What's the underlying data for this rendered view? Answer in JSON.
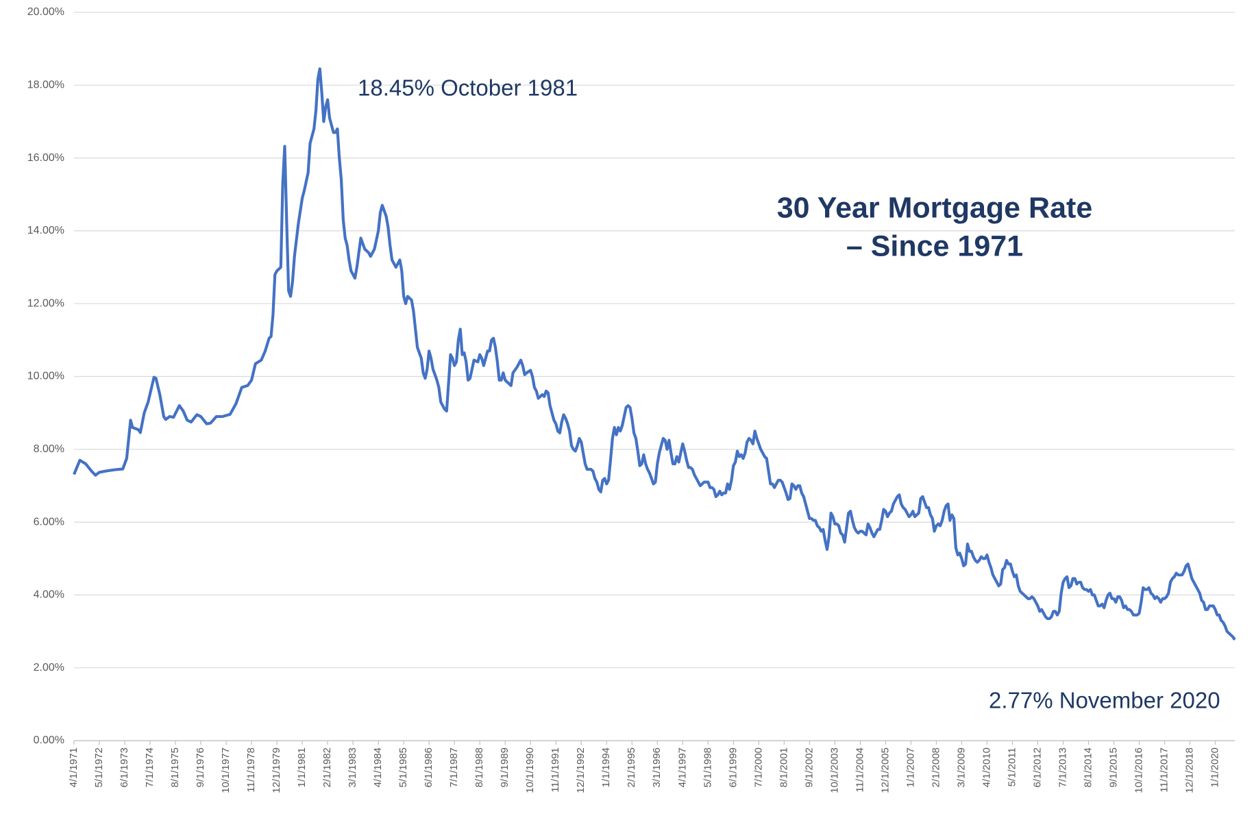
{
  "chart_data": {
    "type": "line",
    "title": [
      "30 Year Mortgage Rate",
      "– Since 1971"
    ],
    "annotations": [
      {
        "text": "18.45% October 1981"
      },
      {
        "text": "2.77% November 2020"
      }
    ],
    "color": "#4472c4",
    "xlim": [
      "4/1/1971",
      "11/1/2020"
    ],
    "xticks": [
      "4/1/1971",
      "5/1/1972",
      "6/1/1973",
      "7/1/1974",
      "8/1/1975",
      "9/1/1976",
      "10/1/1977",
      "11/1/1978",
      "12/1/1979",
      "1/1/1981",
      "2/1/1982",
      "3/1/1983",
      "4/1/1984",
      "5/1/1985",
      "6/1/1986",
      "7/1/1987",
      "8/1/1988",
      "9/1/1989",
      "10/1/1990",
      "11/1/1991",
      "12/1/1992",
      "1/1/1994",
      "2/1/1995",
      "3/1/1996",
      "4/1/1997",
      "5/1/1998",
      "6/1/1999",
      "7/1/2000",
      "8/1/2001",
      "9/1/2002",
      "10/1/2003",
      "11/1/2004",
      "12/1/2005",
      "1/1/2007",
      "2/1/2008",
      "3/1/2009",
      "4/1/2010",
      "5/1/2011",
      "6/1/2012",
      "7/1/2013",
      "8/1/2014",
      "9/1/2015",
      "10/1/2016",
      "11/1/2017",
      "12/1/2018",
      "1/1/2020"
    ],
    "ylim": [
      0,
      20
    ],
    "yticks": [
      {
        "value": 0,
        "label": "0.00%"
      },
      {
        "value": 2,
        "label": "2.00%"
      },
      {
        "value": 4,
        "label": "4.00%"
      },
      {
        "value": 6,
        "label": "6.00%"
      },
      {
        "value": 8,
        "label": "8.00%"
      },
      {
        "value": 10,
        "label": "10.00%"
      },
      {
        "value": 12,
        "label": "12.00%"
      },
      {
        "value": 14,
        "label": "14.00%"
      },
      {
        "value": 16,
        "label": "16.00%"
      },
      {
        "value": 18,
        "label": "18.00%"
      },
      {
        "value": 20,
        "label": "20.00%"
      }
    ],
    "grid": true,
    "x": [
      "4/1/1971",
      "7/1/1971",
      "10/1/1971",
      "1/1/1972",
      "3/1/1972",
      "5/1/1972",
      "9/1/1972",
      "1/1/1973",
      "5/1/1973",
      "7/1/1973",
      "9/1/1973",
      "10/1/1973",
      "1/1/1974",
      "2/1/1974",
      "4/1/1974",
      "6/1/1974",
      "9/1/1974",
      "10/1/1974",
      "12/1/1974",
      "2/1/1975",
      "3/1/1975",
      "5/1/1975",
      "7/1/1975",
      "10/1/1975",
      "12/1/1975",
      "2/1/1976",
      "4/1/1976",
      "7/1/1976",
      "9/1/1976",
      "12/1/1976",
      "2/1/1977",
      "5/1/1977",
      "8/1/1977",
      "12/1/1977",
      "3/1/1978",
      "6/1/1978",
      "9/1/1978",
      "11/1/1978",
      "1/1/1979",
      "4/1/1979",
      "6/1/1979",
      "8/1/1979",
      "9/1/1979",
      "10/1/1979",
      "11/1/1979",
      "12/1/1979",
      "2/1/1980",
      "3/1/1980",
      "4/1/1980",
      "5/1/1980",
      "6/1/1980",
      "7/1/1980",
      "8/1/1980",
      "9/1/1980",
      "11/1/1980",
      "1/1/1981",
      "2/1/1981",
      "4/1/1981",
      "5/1/1981",
      "7/1/1981",
      "8/1/1981",
      "9/1/1981",
      "10/1/1981",
      "11/1/1981",
      "12/1/1981",
      "1/1/1982",
      "2/1/1982",
      "3/1/1982",
      "4/1/1982",
      "5/1/1982",
      "6/1/1982",
      "7/1/1982",
      "8/1/1982",
      "9/1/1982",
      "10/1/1982",
      "11/1/1982",
      "12/1/1982",
      "1/1/1983",
      "2/1/1983",
      "3/1/1983",
      "4/1/1983",
      "5/1/1983",
      "6/1/1983",
      "7/1/1983",
      "9/1/1983",
      "11/1/1983",
      "12/1/1983",
      "2/1/1984",
      "4/1/1984",
      "5/1/1984",
      "6/1/1984",
      "8/1/1984",
      "9/1/1984",
      "10/1/1984",
      "11/1/1984",
      "1/1/1985",
      "3/1/1985",
      "4/1/1985",
      "5/1/1985",
      "6/1/1985",
      "7/1/1985",
      "9/1/1985",
      "10/1/1985",
      "11/1/1985",
      "12/1/1985",
      "2/1/1986",
      "3/1/1986",
      "4/1/1986",
      "5/1/1986",
      "6/1/1986",
      "7/1/1986",
      "8/1/1986",
      "10/1/1986",
      "11/1/1986",
      "12/1/1986",
      "2/1/1987",
      "3/1/1987",
      "5/1/1987",
      "6/1/1987",
      "7/1/1987",
      "8/1/1987",
      "9/1/1987",
      "10/1/1987",
      "11/1/1987",
      "12/1/1987",
      "1/1/1988",
      "2/1/1988",
      "3/1/1988",
      "5/1/1988",
      "7/1/1988",
      "8/1/1988",
      "9/1/1988",
      "10/1/1988",
      "12/1/1988",
      "1/1/1989",
      "2/1/1989",
      "3/1/1989",
      "4/1/1989",
      "5/1/1989",
      "6/1/1989",
      "7/1/1989",
      "8/1/1989",
      "9/1/1989",
      "11/1/1989",
      "12/1/1989",
      "1/1/1990",
      "3/1/1990",
      "5/1/1990",
      "6/1/1990",
      "7/1/1990",
      "8/1/1990",
      "10/1/1990",
      "11/1/1990",
      "12/1/1990",
      "1/1/1991",
      "2/1/1991",
      "4/1/1991",
      "5/1/1991",
      "6/1/1991",
      "7/1/1991",
      "8/1/1991",
      "9/1/1991",
      "10/1/1991",
      "11/1/1991",
      "12/1/1991",
      "1/1/1992",
      "2/1/1992",
      "3/1/1992",
      "4/1/1992",
      "5/1/1992",
      "6/1/1992",
      "7/1/1992",
      "8/1/1992",
      "9/1/1992",
      "10/1/1992",
      "11/1/1992",
      "12/1/1992",
      "1/1/1993",
      "2/1/1993",
      "3/1/1993",
      "5/1/1993",
      "6/1/1993",
      "7/1/1993",
      "8/1/1993",
      "9/1/1993",
      "10/1/1993",
      "11/1/1993",
      "12/1/1993",
      "1/1/1994",
      "2/1/1994",
      "3/1/1994",
      "4/1/1994",
      "5/1/1994",
      "6/1/1994",
      "7/1/1994",
      "8/1/1994",
      "9/1/1994",
      "10/1/1994",
      "11/1/1994",
      "12/1/1994",
      "1/1/1995",
      "2/1/1995",
      "3/1/1995",
      "4/1/1995",
      "5/1/1995",
      "6/1/1995",
      "7/1/1995",
      "8/1/1995",
      "9/1/1995",
      "10/1/1995",
      "11/1/1995",
      "12/1/1995",
      "1/1/1996",
      "2/1/1996",
      "3/1/1996",
      "4/1/1996",
      "5/1/1996",
      "6/1/1996",
      "7/1/1996",
      "8/1/1996",
      "9/1/1996",
      "10/1/1996",
      "11/1/1996",
      "12/1/1996",
      "1/1/1997",
      "2/1/1997",
      "3/1/1997",
      "4/1/1997",
      "5/1/1997",
      "6/1/1997",
      "7/1/1997",
      "8/1/1997",
      "9/1/1997",
      "10/1/1997",
      "11/1/1997",
      "12/1/1997",
      "1/1/1998",
      "2/1/1998",
      "3/1/1998",
      "4/1/1998",
      "5/1/1998",
      "6/1/1998",
      "7/1/1998",
      "8/1/1998",
      "9/1/1998",
      "10/1/1998",
      "11/1/1998",
      "12/1/1998",
      "1/1/1999",
      "2/1/1999",
      "3/1/1999",
      "4/1/1999",
      "5/1/1999",
      "6/1/1999",
      "7/1/1999",
      "8/1/1999",
      "9/1/1999",
      "10/1/1999",
      "11/1/1999",
      "12/1/1999",
      "1/1/2000",
      "2/1/2000",
      "3/1/2000",
      "4/1/2000",
      "5/1/2000",
      "6/1/2000",
      "7/1/2000",
      "8/1/2000",
      "9/1/2000",
      "10/1/2000",
      "11/1/2000",
      "12/1/2000",
      "1/1/2001",
      "2/1/2001",
      "3/1/2001",
      "4/1/2001",
      "5/1/2001",
      "6/1/2001",
      "7/1/2001",
      "8/1/2001",
      "9/1/2001",
      "10/1/2001",
      "11/1/2001",
      "12/1/2001",
      "1/1/2002",
      "2/1/2002",
      "3/1/2002",
      "4/1/2002",
      "5/1/2002",
      "6/1/2002",
      "7/1/2002",
      "8/1/2002",
      "9/1/2002",
      "10/1/2002",
      "11/1/2002",
      "12/1/2002",
      "1/1/2003",
      "2/1/2003",
      "3/1/2003",
      "4/1/2003",
      "5/1/2003",
      "6/1/2003",
      "7/1/2003",
      "8/1/2003",
      "9/1/2003",
      "10/1/2003",
      "11/1/2003",
      "12/1/2003",
      "1/1/2004",
      "2/1/2004",
      "3/1/2004",
      "4/1/2004",
      "5/1/2004",
      "6/1/2004",
      "7/1/2004",
      "8/1/2004",
      "9/1/2004",
      "10/1/2004",
      "11/1/2004",
      "12/1/2004",
      "1/1/2005",
      "2/1/2005",
      "3/1/2005",
      "4/1/2005",
      "5/1/2005",
      "6/1/2005",
      "7/1/2005",
      "8/1/2005",
      "9/1/2005",
      "10/1/2005",
      "11/1/2005",
      "12/1/2005",
      "1/1/2006",
      "2/1/2006",
      "3/1/2006",
      "4/1/2006",
      "5/1/2006",
      "6/1/2006",
      "7/1/2006",
      "8/1/2006",
      "9/1/2006",
      "10/1/2006",
      "11/1/2006",
      "12/1/2006",
      "1/1/2007",
      "2/1/2007",
      "3/1/2007",
      "4/1/2007",
      "5/1/2007",
      "6/1/2007",
      "7/1/2007",
      "8/1/2007",
      "9/1/2007",
      "10/1/2007",
      "11/1/2007",
      "12/1/2007",
      "1/1/2008",
      "2/1/2008",
      "3/1/2008",
      "4/1/2008",
      "5/1/2008",
      "6/1/2008",
      "7/1/2008",
      "8/1/2008",
      "9/1/2008",
      "10/1/2008",
      "11/1/2008",
      "12/1/2008",
      "1/1/2009",
      "2/1/2009",
      "3/1/2009",
      "4/1/2009",
      "5/1/2009",
      "6/1/2009",
      "7/1/2009",
      "8/1/2009",
      "9/1/2009",
      "10/1/2009",
      "11/1/2009",
      "12/1/2009",
      "1/1/2010",
      "2/1/2010",
      "3/1/2010",
      "4/1/2010",
      "5/1/2010",
      "6/1/2010",
      "7/1/2010",
      "8/1/2010",
      "9/1/2010",
      "10/1/2010",
      "11/1/2010",
      "12/1/2010",
      "1/1/2011",
      "2/1/2011",
      "3/1/2011",
      "4/1/2011",
      "5/1/2011",
      "6/1/2011",
      "7/1/2011",
      "8/1/2011",
      "9/1/2011",
      "10/1/2011",
      "11/1/2011",
      "12/1/2011",
      "1/1/2012",
      "2/1/2012",
      "3/1/2012",
      "4/1/2012",
      "5/1/2012",
      "6/1/2012",
      "7/1/2012",
      "8/1/2012",
      "9/1/2012",
      "10/1/2012",
      "11/1/2012",
      "12/1/2012",
      "1/1/2013",
      "2/1/2013",
      "3/1/2013",
      "4/1/2013",
      "5/1/2013",
      "6/1/2013",
      "7/1/2013",
      "8/1/2013",
      "9/1/2013",
      "10/1/2013",
      "11/1/2013",
      "12/1/2013",
      "1/1/2014",
      "2/1/2014",
      "3/1/2014",
      "4/1/2014",
      "5/1/2014",
      "6/1/2014",
      "7/1/2014",
      "8/1/2014",
      "9/1/2014",
      "10/1/2014",
      "11/1/2014",
      "12/1/2014",
      "1/1/2015",
      "2/1/2015",
      "3/1/2015",
      "4/1/2015",
      "5/1/2015",
      "6/1/2015",
      "7/1/2015",
      "8/1/2015",
      "9/1/2015",
      "10/1/2015",
      "11/1/2015",
      "12/1/2015",
      "1/1/2016",
      "2/1/2016",
      "3/1/2016",
      "4/1/2016",
      "5/1/2016",
      "6/1/2016",
      "7/1/2016",
      "8/1/2016",
      "9/1/2016",
      "10/1/2016",
      "11/1/2016",
      "12/1/2016",
      "1/1/2017",
      "2/1/2017",
      "3/1/2017",
      "4/1/2017",
      "5/1/2017",
      "6/1/2017",
      "7/1/2017",
      "8/1/2017",
      "9/1/2017",
      "10/1/2017",
      "11/1/2017",
      "12/1/2017",
      "1/1/2018",
      "2/1/2018",
      "3/1/2018",
      "4/1/2018",
      "5/1/2018",
      "6/1/2018",
      "7/1/2018",
      "8/1/2018",
      "9/1/2018",
      "10/1/2018",
      "11/1/2018",
      "12/1/2018",
      "1/1/2019",
      "2/1/2019",
      "3/1/2019",
      "4/1/2019",
      "5/1/2019",
      "6/1/2019",
      "7/1/2019",
      "8/1/2019",
      "9/1/2019",
      "10/1/2019",
      "11/1/2019",
      "12/1/2019",
      "1/1/2020",
      "2/1/2020",
      "3/1/2020",
      "4/1/2020",
      "5/1/2020",
      "6/1/2020",
      "7/1/2020",
      "8/1/2020",
      "9/1/2020",
      "10/1/2020",
      "11/1/2020"
    ],
    "values": [
      7.31,
      7.7,
      7.6,
      7.4,
      7.29,
      7.37,
      7.41,
      7.44,
      7.46,
      7.75,
      8.8,
      8.6,
      8.54,
      8.46,
      9.0,
      9.3,
      9.98,
      9.95,
      9.5,
      8.9,
      8.82,
      8.9,
      8.88,
      9.2,
      9.05,
      8.8,
      8.75,
      8.95,
      8.9,
      8.7,
      8.72,
      8.9,
      8.9,
      8.96,
      9.25,
      9.7,
      9.75,
      9.9,
      10.35,
      10.45,
      10.7,
      11.05,
      11.1,
      11.7,
      12.8,
      12.9,
      13.0,
      15.3,
      16.32,
      14.26,
      12.35,
      12.2,
      12.6,
      13.3,
      14.2,
      14.9,
      15.1,
      15.6,
      16.4,
      16.8,
      17.3,
      18.16,
      18.45,
      17.8,
      17.0,
      17.4,
      17.6,
      17.1,
      16.9,
      16.7,
      16.7,
      16.8,
      16.0,
      15.4,
      14.3,
      13.8,
      13.6,
      13.2,
      12.9,
      12.8,
      12.7,
      13.0,
      13.4,
      13.8,
      13.5,
      13.4,
      13.3,
      13.5,
      14.0,
      14.5,
      14.7,
      14.4,
      14.1,
      13.6,
      13.2,
      13.0,
      13.2,
      12.9,
      12.2,
      12.0,
      12.2,
      12.1,
      11.8,
      11.3,
      10.8,
      10.5,
      10.1,
      9.95,
      10.2,
      10.7,
      10.5,
      10.2,
      9.9,
      9.7,
      9.3,
      9.1,
      9.05,
      10.6,
      10.5,
      10.3,
      10.4,
      11.0,
      11.3,
      10.6,
      10.65,
      10.4,
      9.9,
      9.95,
      10.45,
      10.4,
      10.6,
      10.5,
      10.3,
      10.7,
      10.7,
      11.0,
      11.05,
      10.8,
      10.4,
      9.9,
      9.9,
      10.1,
      9.9,
      9.8,
      9.75,
      10.1,
      10.25,
      10.45,
      10.3,
      10.05,
      10.1,
      10.17,
      10.0,
      9.7,
      9.6,
      9.4,
      9.5,
      9.45,
      9.6,
      9.55,
      9.2,
      9.0,
      8.8,
      8.7,
      8.5,
      8.45,
      8.75,
      8.95,
      8.85,
      8.7,
      8.5,
      8.1,
      8.0,
      7.95,
      8.1,
      8.3,
      8.2,
      7.9,
      7.6,
      7.45,
      7.45,
      7.4,
      7.2,
      7.1,
      6.9,
      6.83,
      7.15,
      7.2,
      7.05,
      7.15,
      7.7,
      8.3,
      8.6,
      8.4,
      8.6,
      8.5,
      8.65,
      8.9,
      9.15,
      9.2,
      9.15,
      8.85,
      8.45,
      8.3,
      7.95,
      7.55,
      7.6,
      7.85,
      7.6,
      7.45,
      7.35,
      7.2,
      7.05,
      7.1,
      7.6,
      7.9,
      8.1,
      8.3,
      8.25,
      8.0,
      8.25,
      7.9,
      7.6,
      7.6,
      7.8,
      7.65,
      7.9,
      8.15,
      7.95,
      7.7,
      7.5,
      7.5,
      7.45,
      7.3,
      7.2,
      7.1,
      7.0,
      7.05,
      7.1,
      7.1,
      7.1,
      6.95,
      6.95,
      6.9,
      6.7,
      6.75,
      6.85,
      6.75,
      6.8,
      6.8,
      7.05,
      6.9,
      7.15,
      7.55,
      7.65,
      7.95,
      7.8,
      7.85,
      7.75,
      7.9,
      8.2,
      8.3,
      8.25,
      8.15,
      8.5,
      8.3,
      8.15,
      8.0,
      7.9,
      7.8,
      7.75,
      7.4,
      7.05,
      7.05,
      6.95,
      7.05,
      7.15,
      7.15,
      7.1,
      6.95,
      6.8,
      6.62,
      6.65,
      7.05,
      7.0,
      6.9,
      7.0,
      7.0,
      6.8,
      6.7,
      6.5,
      6.3,
      6.1,
      6.1,
      6.05,
      6.05,
      5.9,
      5.85,
      5.75,
      5.8,
      5.5,
      5.25,
      5.6,
      6.25,
      6.15,
      5.95,
      5.95,
      5.9,
      5.7,
      5.65,
      5.45,
      5.85,
      6.25,
      6.3,
      6.05,
      5.85,
      5.75,
      5.7,
      5.75,
      5.75,
      5.7,
      5.65,
      5.95,
      5.85,
      5.7,
      5.6,
      5.7,
      5.8,
      5.8,
      6.05,
      6.35,
      6.3,
      6.15,
      6.25,
      6.3,
      6.5,
      6.6,
      6.7,
      6.75,
      6.5,
      6.4,
      6.35,
      6.25,
      6.15,
      6.2,
      6.3,
      6.15,
      6.2,
      6.25,
      6.65,
      6.7,
      6.55,
      6.4,
      6.4,
      6.2,
      6.1,
      5.75,
      5.9,
      5.95,
      5.9,
      6.05,
      6.3,
      6.45,
      6.5,
      6.05,
      6.2,
      6.1,
      5.3,
      5.1,
      5.15,
      5.0,
      4.8,
      4.85,
      5.4,
      5.2,
      5.2,
      5.05,
      4.95,
      4.9,
      4.95,
      5.05,
      5.0,
      5.0,
      5.1,
      4.9,
      4.75,
      4.55,
      4.45,
      4.35,
      4.25,
      4.3,
      4.7,
      4.75,
      4.95,
      4.85,
      4.85,
      4.65,
      4.5,
      4.55,
      4.25,
      4.1,
      4.05,
      4.0,
      3.95,
      3.9,
      3.9,
      3.95,
      3.9,
      3.8,
      3.7,
      3.55,
      3.6,
      3.5,
      3.4,
      3.35,
      3.35,
      3.4,
      3.55,
      3.55,
      3.45,
      3.55,
      4.05,
      4.35,
      4.45,
      4.5,
      4.2,
      4.25,
      4.45,
      4.45,
      4.3,
      4.35,
      4.35,
      4.2,
      4.15,
      4.15,
      4.1,
      4.15,
      4.0,
      4.0,
      3.85,
      3.7,
      3.7,
      3.75,
      3.65,
      3.85,
      4.0,
      4.05,
      3.9,
      3.9,
      3.8,
      3.95,
      3.95,
      3.85,
      3.65,
      3.7,
      3.6,
      3.6,
      3.55,
      3.45,
      3.45,
      3.45,
      3.5,
      3.8,
      4.2,
      4.15,
      4.15,
      4.2,
      4.05,
      4.0,
      3.9,
      3.95,
      3.9,
      3.8,
      3.9,
      3.9,
      3.95,
      4.05,
      4.35,
      4.45,
      4.5,
      4.6,
      4.55,
      4.55,
      4.55,
      4.65,
      4.8,
      4.85,
      4.65,
      4.45,
      4.35,
      4.25,
      4.15,
      4.05,
      3.85,
      3.8,
      3.6,
      3.6,
      3.7,
      3.7,
      3.7,
      3.6,
      3.45,
      3.45,
      3.3,
      3.25,
      3.15,
      3.0,
      2.95,
      2.9,
      2.85,
      2.77
    ]
  }
}
